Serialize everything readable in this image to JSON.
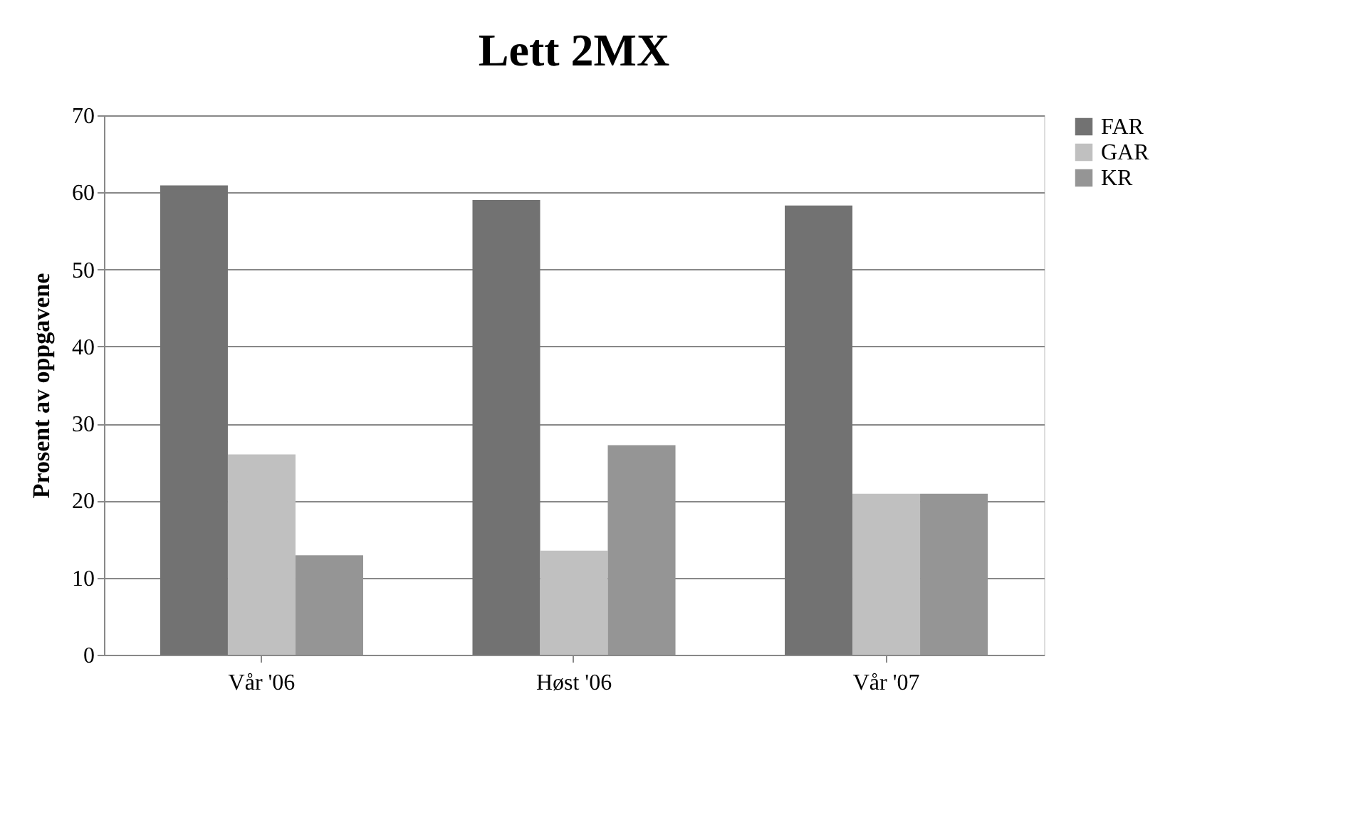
{
  "chart_data": {
    "type": "bar",
    "title": "Lett 2MX",
    "ylabel": "Prosent av oppgavene",
    "categories": [
      "Vår '06",
      "Høst '06",
      "Vår '07"
    ],
    "series": [
      {
        "name": "FAR",
        "color": "#727272",
        "values": [
          60.9,
          59.0,
          58.3
        ]
      },
      {
        "name": "GAR",
        "color": "#c0c0c0",
        "values": [
          26.0,
          13.5,
          20.9
        ]
      },
      {
        "name": "KR",
        "color": "#959595",
        "values": [
          12.9,
          27.2,
          20.9
        ]
      }
    ],
    "ylim": [
      0,
      70
    ],
    "yticks": [
      0,
      10,
      20,
      30,
      40,
      50,
      60,
      70
    ],
    "grid": "y",
    "legend": "right"
  }
}
